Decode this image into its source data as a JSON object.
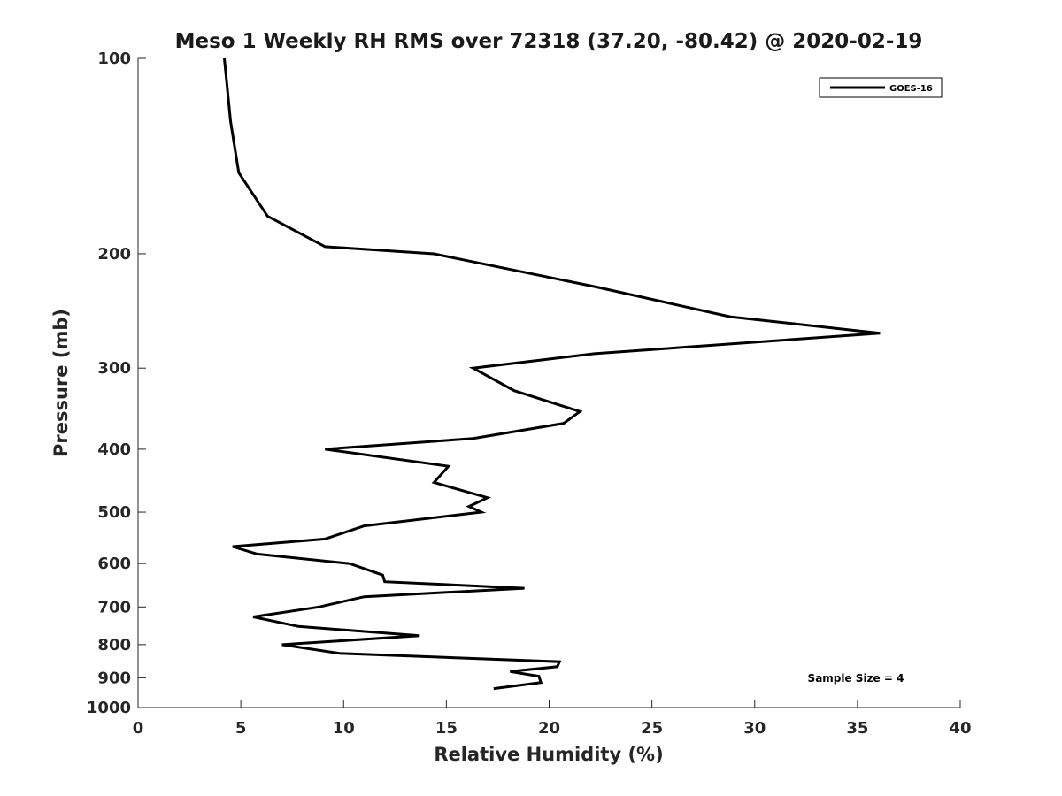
{
  "chart_data": {
    "type": "line",
    "title": "Meso 1 Weekly RH RMS over 72318 (37.20, -80.42) @ 2020-02-19",
    "xlabel": "Relative Humidity (%)",
    "ylabel": "Pressure (mb)",
    "xlim": [
      0,
      40
    ],
    "ylim": [
      100,
      1000
    ],
    "y_scale": "log",
    "y_reversed": true,
    "x_ticks": [
      0,
      5,
      10,
      15,
      20,
      25,
      30,
      35,
      40
    ],
    "y_ticks": [
      100,
      200,
      300,
      400,
      500,
      600,
      700,
      800,
      900,
      1000
    ],
    "grid": false,
    "legend_position": "top-right",
    "annotation": "Sample Size = 4",
    "series": [
      {
        "name": "GOES-16",
        "color": "#000000",
        "points": [
          [
            4.2,
            100
          ],
          [
            4.5,
            125
          ],
          [
            4.9,
            150
          ],
          [
            6.3,
            175
          ],
          [
            9.1,
            195
          ],
          [
            14.4,
            200
          ],
          [
            22.3,
            225
          ],
          [
            28.8,
            250
          ],
          [
            36.1,
            265
          ],
          [
            22.2,
            285
          ],
          [
            16.3,
            300
          ],
          [
            18.3,
            325
          ],
          [
            21.5,
            350
          ],
          [
            20.7,
            365
          ],
          [
            16.3,
            385
          ],
          [
            9.1,
            400
          ],
          [
            15.1,
            425
          ],
          [
            14.4,
            450
          ],
          [
            17.0,
            475
          ],
          [
            16.1,
            490
          ],
          [
            16.7,
            500
          ],
          [
            11.0,
            525
          ],
          [
            9.1,
            550
          ],
          [
            4.6,
            565
          ],
          [
            5.8,
            580
          ],
          [
            10.3,
            600
          ],
          [
            11.9,
            625
          ],
          [
            12.0,
            640
          ],
          [
            18.8,
            655
          ],
          [
            11.0,
            675
          ],
          [
            8.8,
            700
          ],
          [
            5.6,
            725
          ],
          [
            7.8,
            750
          ],
          [
            13.7,
            775
          ],
          [
            7.0,
            800
          ],
          [
            9.8,
            825
          ],
          [
            20.5,
            850
          ],
          [
            20.4,
            865
          ],
          [
            18.1,
            880
          ],
          [
            19.5,
            895
          ],
          [
            19.6,
            915
          ],
          [
            17.3,
            935
          ]
        ]
      }
    ]
  }
}
